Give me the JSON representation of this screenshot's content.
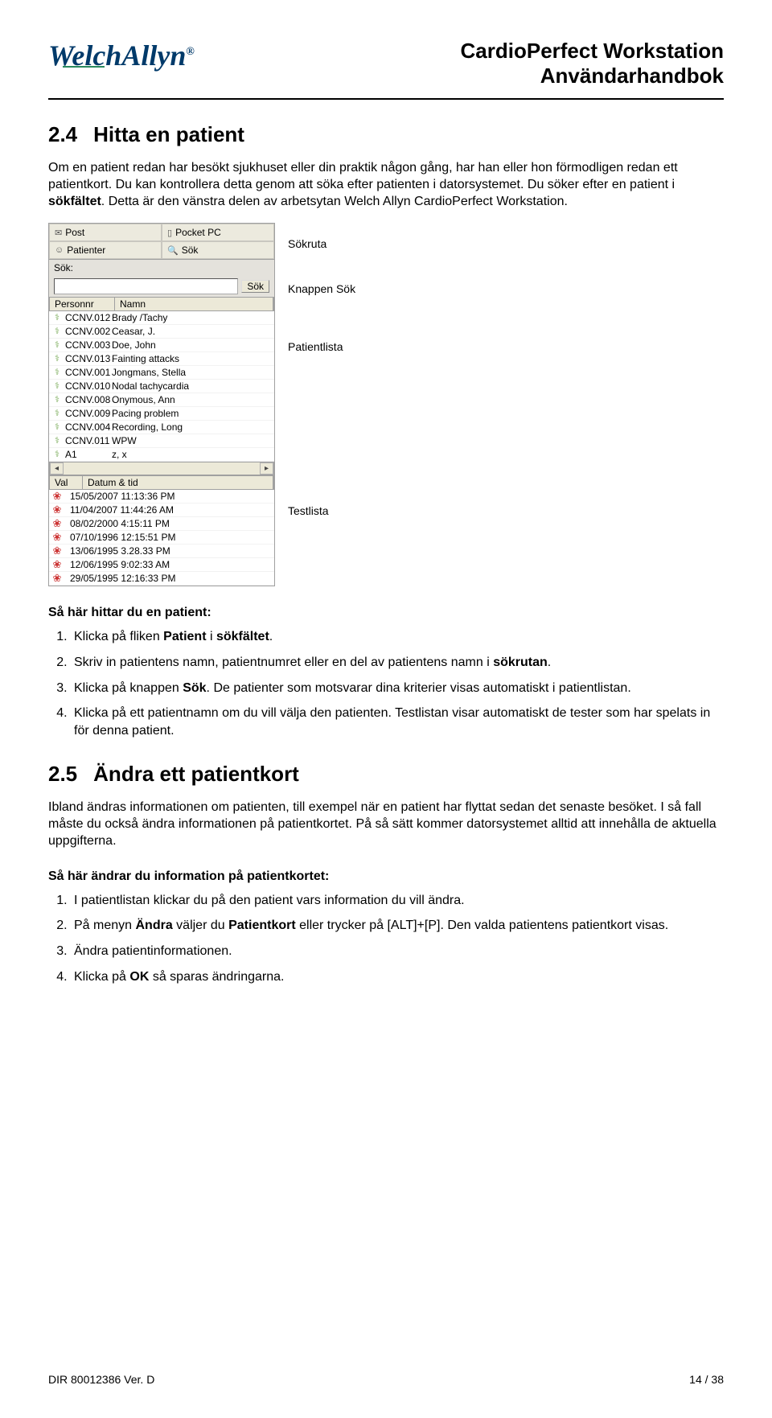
{
  "header": {
    "logo_text": "WelchAllyn",
    "logo_reg": "®",
    "doc_title1": "CardioPerfect Workstation",
    "doc_title2": "Användarhandbok"
  },
  "section24": {
    "num": "2.4",
    "title": "Hitta en patient",
    "p1": "Om en patient redan har besökt sjukhuset eller din praktik någon gång, har han eller hon förmodligen redan ett patientkort. Du kan kontrollera detta genom att söka efter patienten i datorsystemet. Du söker efter en patient i ",
    "p1_bold": "sökfältet",
    "p1_tail": ". Detta är den vänstra delen av arbetsytan Welch Allyn CardioPerfect Workstation."
  },
  "callouts": {
    "sokruta": "Sökruta",
    "knappsok": "Knappen Sök",
    "patientlista": "Patientlista",
    "testlista": "Testlista"
  },
  "panel": {
    "tabs": {
      "post": "Post",
      "pocket": "Pocket PC",
      "patienter": "Patienter",
      "sok": "Sök"
    },
    "sok_label": "Sök:",
    "sok_btn": "Sök",
    "list_header": {
      "personnr": "Personnr",
      "namn": "Namn"
    },
    "patients": [
      {
        "id": "CCNV.012",
        "name": "Brady /Tachy"
      },
      {
        "id": "CCNV.002",
        "name": "Ceasar, J."
      },
      {
        "id": "CCNV.003",
        "name": "Doe, John"
      },
      {
        "id": "CCNV.013",
        "name": "Fainting attacks"
      },
      {
        "id": "CCNV.001",
        "name": "Jongmans, Stella"
      },
      {
        "id": "CCNV.010",
        "name": "Nodal tachycardia"
      },
      {
        "id": "CCNV.008",
        "name": "Onymous, Ann"
      },
      {
        "id": "CCNV.009",
        "name": "Pacing problem"
      },
      {
        "id": "CCNV.004",
        "name": "Recording, Long"
      },
      {
        "id": "CCNV.011",
        "name": "WPW"
      },
      {
        "id": "A1",
        "name": "z, x"
      }
    ],
    "test_header": {
      "val": "Val",
      "datum": "Datum & tid"
    },
    "tests": [
      "15/05/2007 11:13:36 PM",
      "11/04/2007 11:44:26 AM",
      "08/02/2000 4:15:11 PM",
      "07/10/1996 12:15:51 PM",
      "13/06/1995 3.28.33 PM",
      "12/06/1995 9:02:33 AM",
      "29/05/1995 12:16:33 PM"
    ]
  },
  "howto_find_heading": "Så här hittar du en patient:",
  "steps_find": [
    {
      "pre": "Klicka på fliken ",
      "b1": "Patient",
      "mid": " i ",
      "b2": "sökfältet",
      "post": "."
    },
    {
      "pre": "Skriv in patientens namn, patientnumret eller en del av patientens namn i ",
      "b1": "sökrutan",
      "mid": "",
      "b2": "",
      "post": "."
    },
    {
      "pre": "Klicka på knappen ",
      "b1": "Sök",
      "mid": ". De patienter som motsvarar dina kriterier visas automatiskt i patientlistan.",
      "b2": "",
      "post": ""
    },
    {
      "pre": "Klicka på ett patientnamn om du vill välja den patienten. Testlistan visar automatiskt de tester som har spelats in för denna patient.",
      "b1": "",
      "mid": "",
      "b2": "",
      "post": ""
    }
  ],
  "section25": {
    "num": "2.5",
    "title": "Ändra ett patientkort",
    "p1": "Ibland ändras informationen om patienten, till exempel när en patient har flyttat sedan det senaste besöket. I så fall måste du också ändra informationen på patientkortet. På så sätt kommer datorsystemet alltid att innehålla de aktuella uppgifterna."
  },
  "howto_edit_heading": "Så här ändrar du information på patientkortet:",
  "steps_edit": [
    {
      "text": "I patientlistan klickar du på den patient vars information du vill ändra."
    },
    {
      "pre": "På menyn ",
      "b1": "Ändra",
      "mid": " väljer du ",
      "b2": "Patientkort",
      "post": " eller trycker på [ALT]+[P]. Den valda patientens patientkort visas."
    },
    {
      "text": "Ändra patientinformationen."
    },
    {
      "pre": "Klicka på ",
      "b1": "OK",
      "mid": " så sparas ändringarna.",
      "b2": "",
      "post": ""
    }
  ],
  "footer": {
    "left": "DIR 80012386 Ver. D",
    "right": "14  / 38"
  }
}
